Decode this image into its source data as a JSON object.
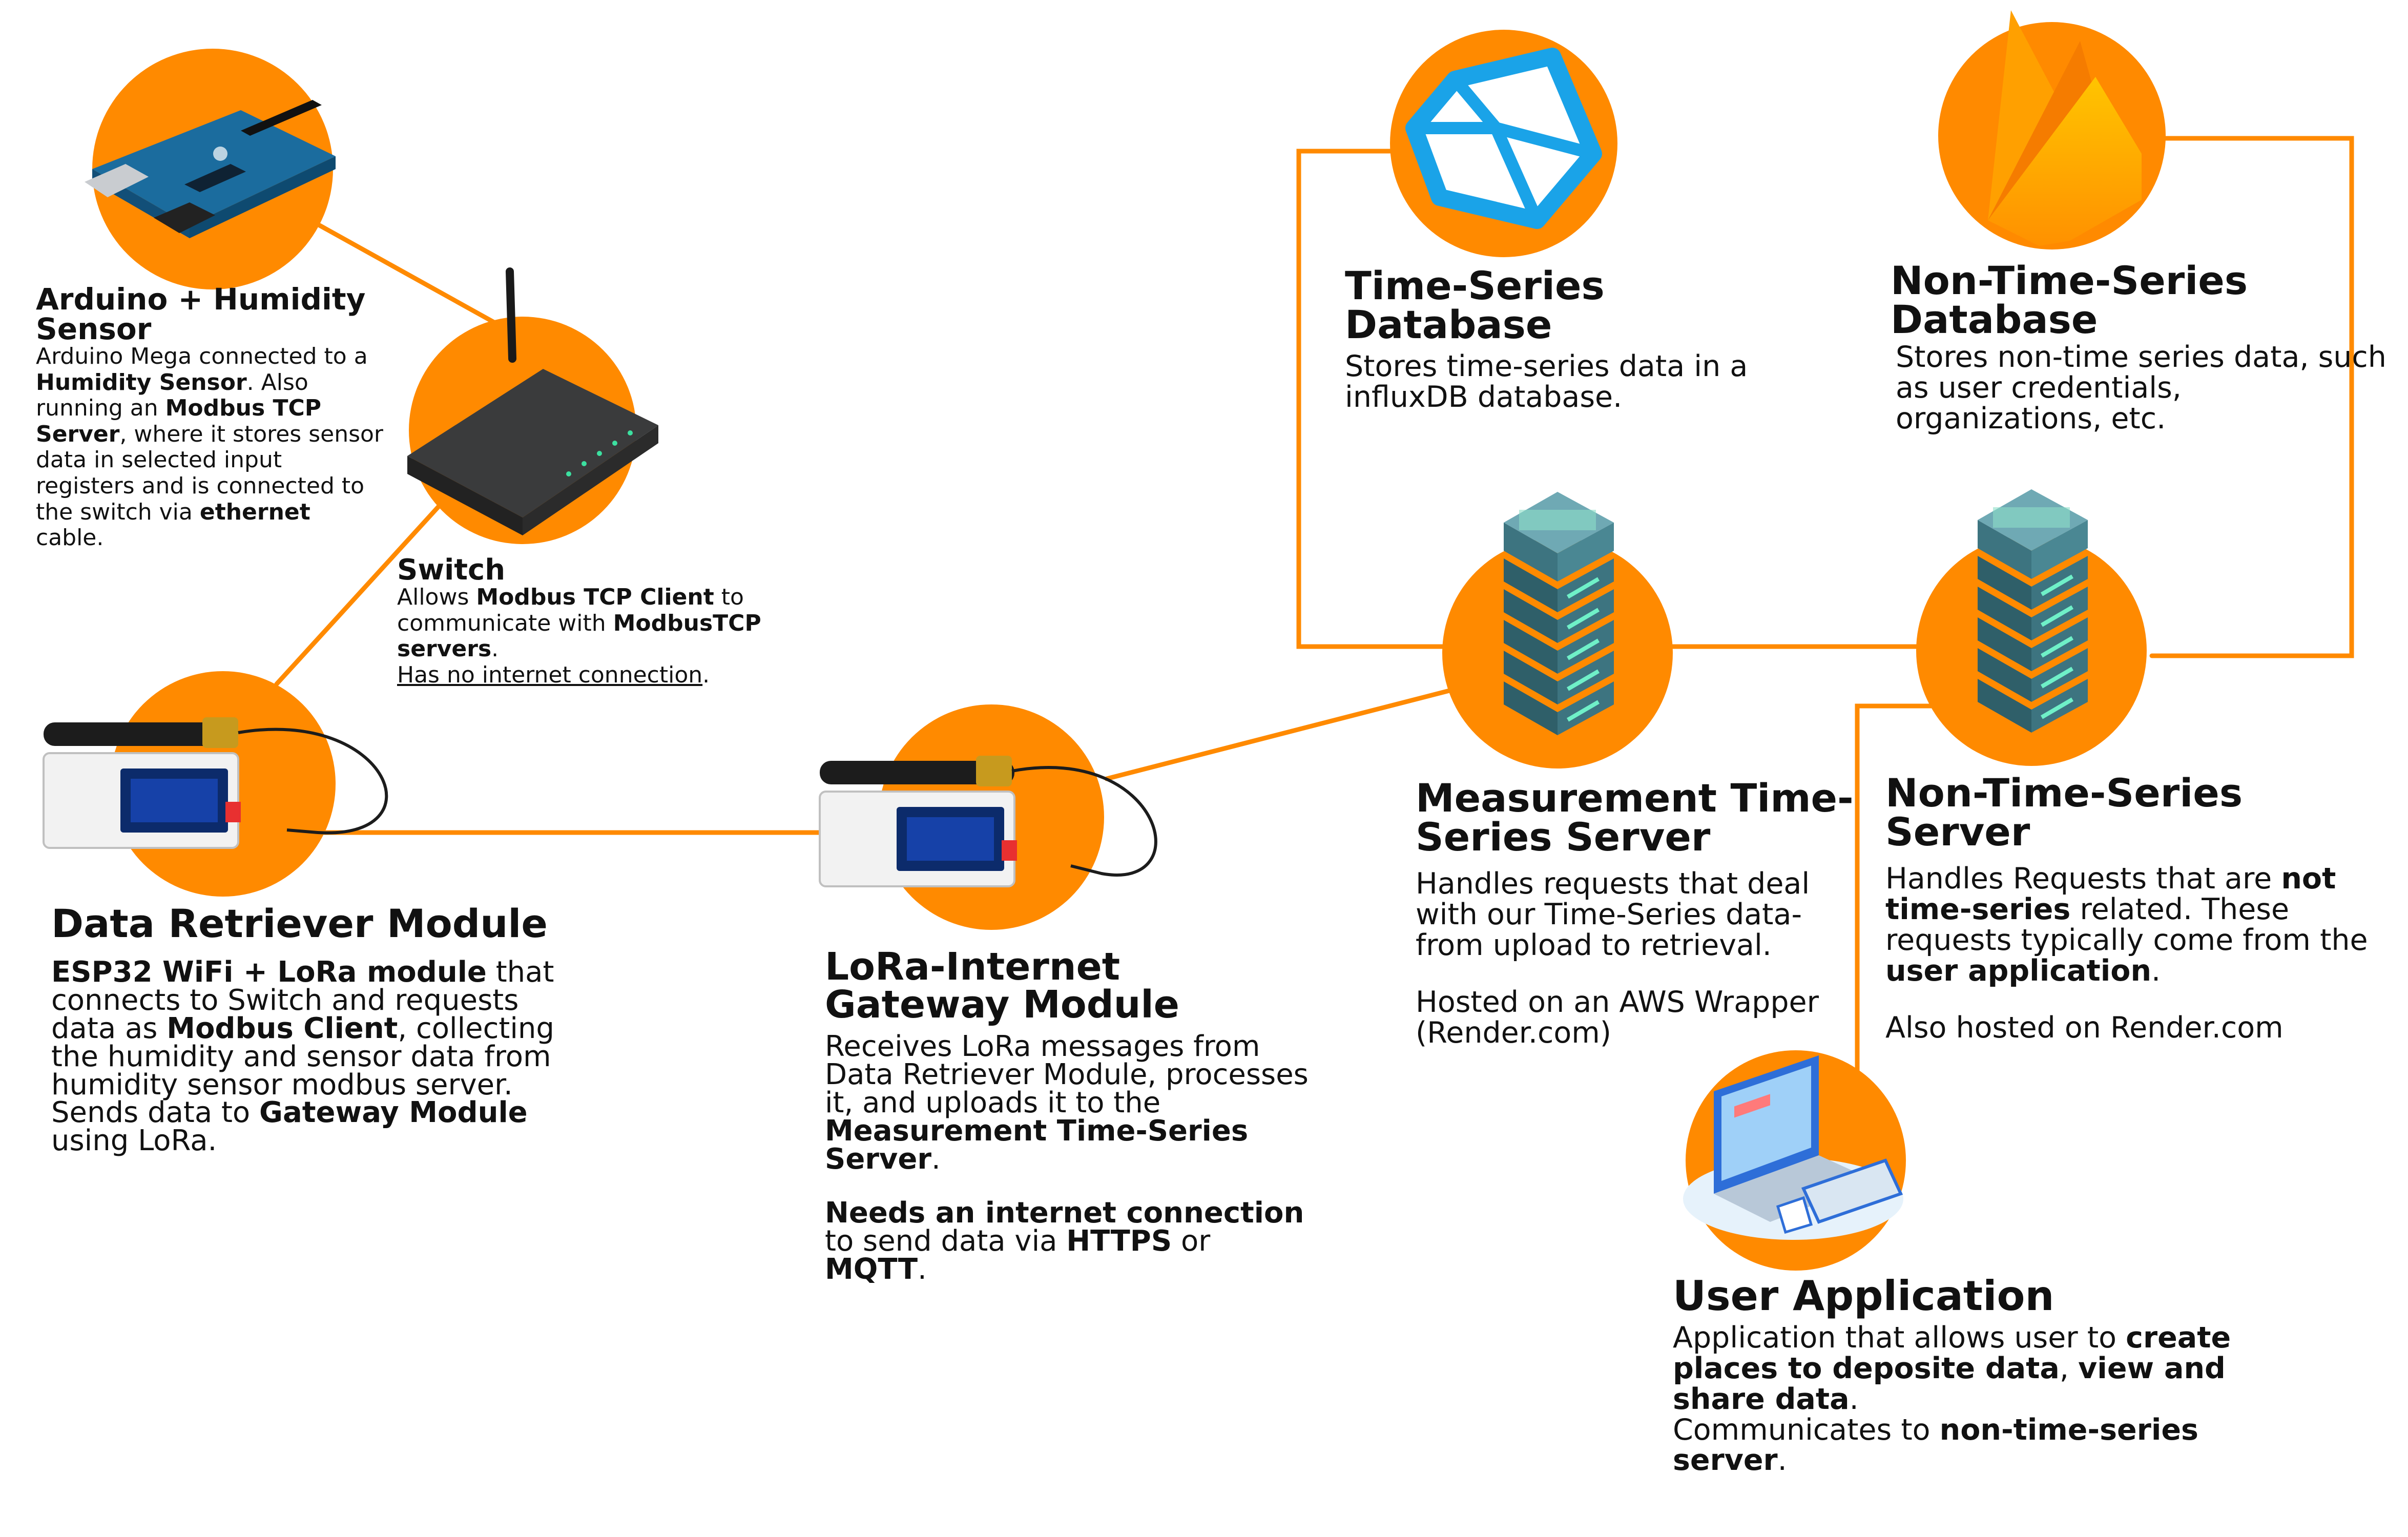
{
  "colors": {
    "accent": "#ff8a00",
    "ink": "#111111",
    "db_blue": "#1aa3e8",
    "server_teal": "#4a7f8a"
  },
  "nodes": {
    "arduino": {
      "icon": "arduino-board-icon",
      "title": "Arduino + Humidity Sensor",
      "d1": "Arduino Mega connected to a ",
      "d2": "Humidity Sensor",
      "d3": ". Also running an ",
      "d4": "Modbus TCP Server",
      "d5": ", where it stores sensor data in selected input registers and is connected to the switch via ",
      "d6": "ethernet",
      "d7": " cable."
    },
    "switch": {
      "icon": "network-switch-icon",
      "title": "Switch",
      "d1": "Allows ",
      "d2": "Modbus TCP Client",
      "d3": " to communicate with ",
      "d4": "ModbusTCP servers",
      "d5": ".",
      "d6": "Has no internet connection",
      "d7": "."
    },
    "retriever": {
      "icon": "lora-board-icon",
      "title": "Data Retriever Module",
      "d1": "ESP32 WiFi + LoRa module",
      "d2": " that connects to Switch and requests data as ",
      "d3": "Modbus Client",
      "d4": ", collecting the humidity and sensor data from humidity sensor modbus server.",
      "d5": "Sends data to ",
      "d6": "Gateway Module",
      "d7": " using LoRa."
    },
    "gateway": {
      "icon": "lora-board-icon",
      "title": "LoRa-Internet Gateway Module",
      "d1": "Receives LoRa messages from Data Retriever Module, processes it, and uploads it to the ",
      "d2": "Measurement Time-Series Server",
      "d3": ".",
      "d4": "Needs an internet connection",
      "d5": " to send data via ",
      "d6": "HTTPS",
      "d7": " or ",
      "d8": "MQTT",
      "d9": "."
    },
    "tsdb": {
      "icon": "influxdb-icon",
      "title": "Time-Series Database",
      "d1": "Stores time-series data in a influxDB database."
    },
    "ntsdb": {
      "icon": "firebase-icon",
      "title": "Non-Time-Series Database",
      "d1": "Stores non-time series data, such as user credentials, organizations, etc."
    },
    "measurement": {
      "icon": "server-stack-icon",
      "title": "Measurement Time-Series Server",
      "d1": "Handles requests that deal with our Time-Series data- from upload to retrieval.",
      "d2": "Hosted on an AWS Wrapper (Render.com)"
    },
    "ntsserver": {
      "icon": "server-stack-icon",
      "title": "Non-Time-Series Server",
      "d1": "Handles Requests that are ",
      "d2": "not time-series",
      "d3": " related. These requests typically come from the ",
      "d4": "user application",
      "d5": ".",
      "d6": "Also hosted on Render.com"
    },
    "userapp": {
      "icon": "laptop-devices-icon",
      "title": "User Application",
      "d1": "Application that allows user to ",
      "d2": "create places to deposite data",
      "d3": ", ",
      "d4": "view and share data",
      "d5": ".",
      "d6": "Communicates to ",
      "d7": "non-time-series server",
      "d8": "."
    }
  }
}
